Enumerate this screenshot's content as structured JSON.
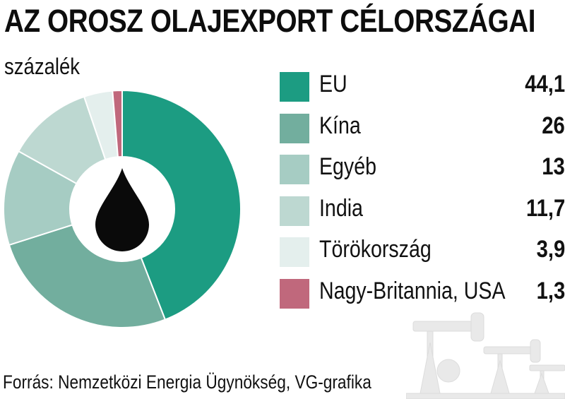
{
  "chart_data": {
    "type": "pie",
    "style": "donut",
    "title": "AZ OROSZ OLAJEXPORT CÉLORSZÁGAI",
    "unit": "százalék",
    "legend_position": "right",
    "center_icon": "oil-drop-icon",
    "slices": [
      {
        "label": "EU",
        "value": 44.1,
        "display": "44,1",
        "color": "#1c9c82"
      },
      {
        "label": "Kína",
        "value": 26,
        "display": "26",
        "color": "#72ae9e"
      },
      {
        "label": "Egyéb",
        "value": 13,
        "display": "13",
        "color": "#a6ccc3"
      },
      {
        "label": "India",
        "value": 11.7,
        "display": "11,7",
        "color": "#bdd8d1"
      },
      {
        "label": "Törökország",
        "value": 3.9,
        "display": "3,9",
        "color": "#e4efed"
      },
      {
        "label": "Nagy-Britannia, USA",
        "value": 1.3,
        "display": "1,3",
        "color": "#c0687c"
      }
    ],
    "source": "Forrás: Nemzetközi Energia Ügynökség, VG-grafika"
  }
}
